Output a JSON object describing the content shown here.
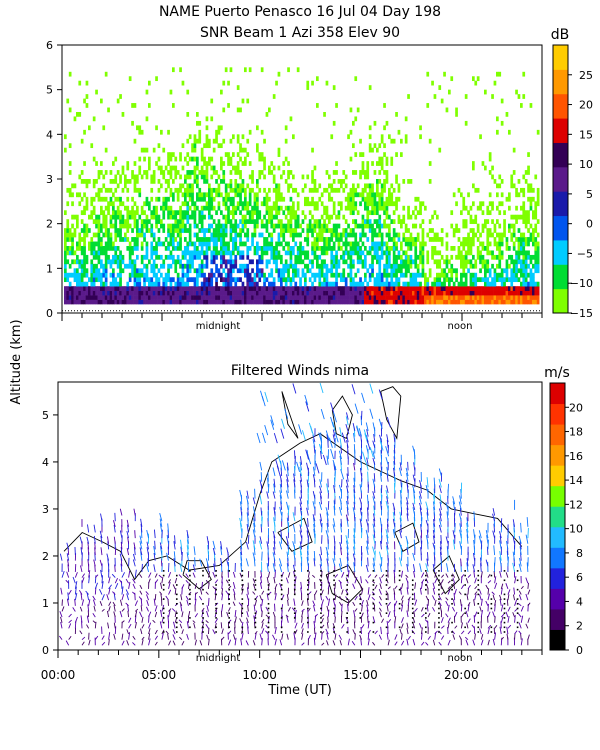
{
  "header": {
    "line1": "NAME Puerto Penasco  16 Jul 04 Day 198",
    "line2": "SNR Beam 1 Azi 358 Elev 90"
  },
  "shared": {
    "ylabel": "Altitude (km)",
    "xlabel": "Time (UT)",
    "midnight_label": "midnight",
    "noon_label": "noon"
  },
  "chart_data": [
    {
      "type": "heatmap",
      "title": "SNR Beam 1 Azi 358 Elev 90",
      "ylim": [
        0,
        6
      ],
      "y_ticks": [
        0,
        1,
        2,
        3,
        4,
        5,
        6
      ],
      "xlim": [
        0,
        24
      ],
      "colorbar": {
        "unit": "dB",
        "ticks": [
          -15,
          -10,
          -5,
          0,
          5,
          10,
          15,
          20,
          25
        ],
        "range": [
          -15,
          30
        ],
        "colors": [
          "#7fff00",
          "#00dd33",
          "#00ccff",
          "#0055ee",
          "#1a1aaa",
          "#5a1a8a",
          "#330055",
          "#dd0000",
          "#ff5500",
          "#ff9900",
          "#ffcc00"
        ]
      }
    },
    {
      "type": "scatter",
      "title": "Filtered Winds nima",
      "ylim": [
        0,
        5.7
      ],
      "y_ticks": [
        0,
        1,
        2,
        3,
        4,
        5
      ],
      "xlim": [
        0,
        24
      ],
      "x_ticks": [
        "00:00",
        "05:00",
        "10:00",
        "15:00",
        "20:00"
      ],
      "x_tick_values": [
        0,
        5,
        10,
        15,
        20
      ],
      "colorbar": {
        "unit": "m/s",
        "ticks": [
          0,
          2,
          4,
          6,
          8,
          10,
          12,
          14,
          16,
          18,
          20
        ],
        "range": [
          0,
          22
        ],
        "colors": [
          "#000000",
          "#440066",
          "#5500aa",
          "#2222dd",
          "#1177ff",
          "#22bbff",
          "#22dd88",
          "#77ff00",
          "#ffcc00",
          "#ff9900",
          "#ff6600",
          "#ff3300",
          "#dd0000"
        ]
      }
    }
  ]
}
